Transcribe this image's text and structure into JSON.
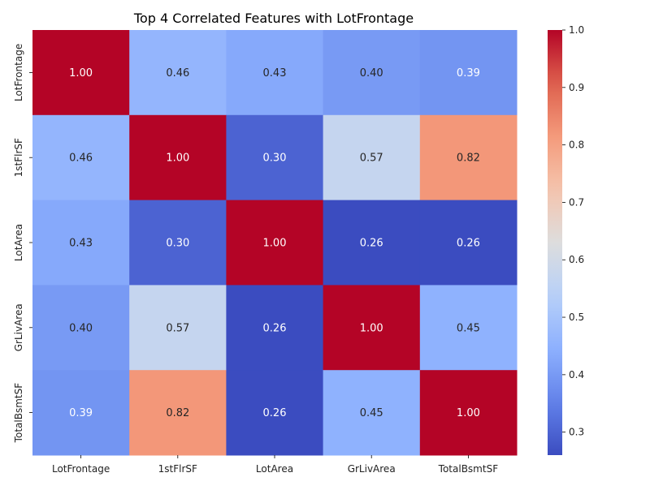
{
  "chart_data": {
    "type": "heatmap",
    "title": "Top 4 Correlated Features with LotFrontage",
    "xlabel": "",
    "ylabel": "",
    "colormap": "coolwarm",
    "rows": [
      "LotFrontage",
      "1stFlrSF",
      "LotArea",
      "GrLivArea",
      "TotalBsmtSF"
    ],
    "columns": [
      "LotFrontage",
      "1stFlrSF",
      "LotArea",
      "GrLivArea",
      "TotalBsmtSF"
    ],
    "values": [
      [
        1.0,
        0.46,
        0.43,
        0.4,
        0.39
      ],
      [
        0.46,
        1.0,
        0.3,
        0.57,
        0.82
      ],
      [
        0.43,
        0.3,
        1.0,
        0.26,
        0.26
      ],
      [
        0.4,
        0.57,
        0.26,
        1.0,
        0.45
      ],
      [
        0.39,
        0.82,
        0.26,
        0.45,
        1.0
      ]
    ],
    "value_format": "0.00",
    "colorbar": {
      "range": [
        0.26,
        1.0
      ],
      "ticks": [
        "0.3",
        "0.4",
        "0.5",
        "0.6",
        "0.7",
        "0.8",
        "0.9",
        "1.0"
      ]
    }
  }
}
